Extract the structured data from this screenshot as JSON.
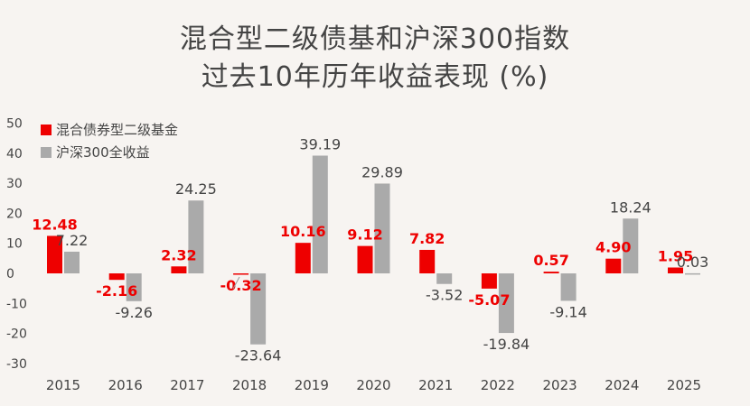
{
  "title_line1": "混合型二级债基和沪深300指数",
  "title_line2": "过去10年历年收益表现 (%)",
  "colors": {
    "fund": "#ee0000",
    "index": "#aaaaaa",
    "fund_label": "#ee0000",
    "index_label": "#444444"
  },
  "chart_data": {
    "type": "bar",
    "title": "混合型二级债基和沪深300指数 过去10年历年收益表现 (%)",
    "categories": [
      "2015",
      "2016",
      "2017",
      "2018",
      "2019",
      "2020",
      "2021",
      "2022",
      "2023",
      "2024",
      "2025"
    ],
    "series": [
      {
        "name": "混合债券型二级基金",
        "values": [
          12.48,
          -2.16,
          2.32,
          -0.32,
          10.16,
          9.12,
          7.82,
          -5.07,
          0.57,
          4.9,
          1.95
        ],
        "labels": [
          "12.48",
          "-2.16",
          "2.32",
          "-0.32",
          "10.16",
          "9.12",
          "7.82",
          "-5.07",
          "0.57",
          "4.90",
          "1.95"
        ]
      },
      {
        "name": "沪深300全收益",
        "values": [
          7.22,
          -9.26,
          24.25,
          -23.64,
          39.19,
          29.89,
          -3.52,
          -19.84,
          -9.14,
          18.24,
          0.03
        ],
        "labels": [
          "7.22",
          "-9.26",
          "24.25",
          "-23.64",
          "39.19",
          "29.89",
          "-3.52",
          "-19.84",
          "-9.14",
          "18.24",
          "0.03"
        ]
      }
    ],
    "yticks": [
      "50",
      "40",
      "30",
      "20",
      "10",
      "0",
      "-10",
      "-20",
      "-30"
    ],
    "ylim": [
      -30,
      50
    ],
    "grid": false,
    "legend_position": "top-left"
  }
}
